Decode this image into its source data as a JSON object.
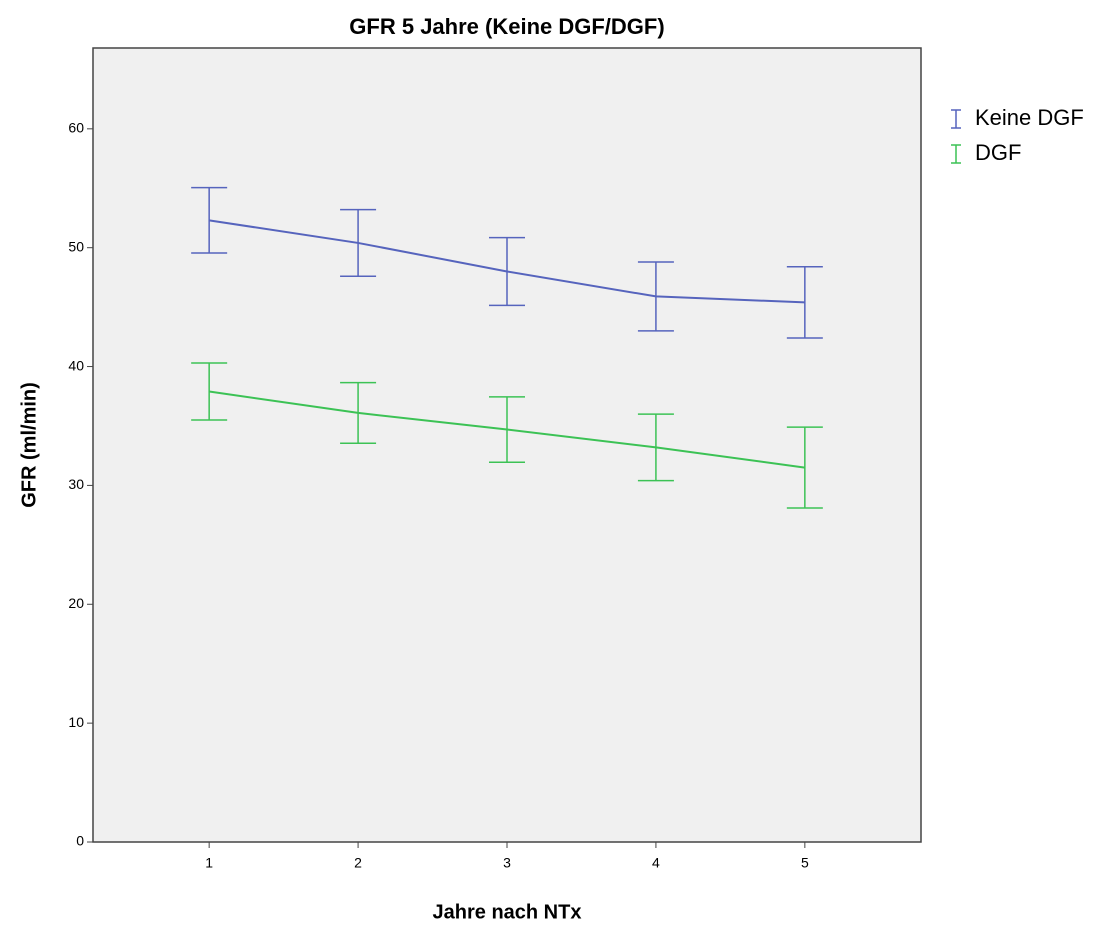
{
  "chart_data": {
    "type": "line",
    "title": "GFR 5 Jahre (Keine DGF/DGF)",
    "x_label": "Jahre nach NTx",
    "y_label": "GFR (ml/min)",
    "x": [
      1,
      2,
      3,
      4,
      5
    ],
    "xlim": [
      0.22,
      5.78
    ],
    "xticks": [
      1,
      2,
      3,
      4,
      5
    ],
    "ylim": [
      0,
      66.8
    ],
    "yticks": [
      0,
      10,
      20,
      30,
      40,
      50,
      60
    ],
    "legend": "right",
    "series": [
      {
        "name": "Keine DGF",
        "color": "#5664bd",
        "values": [
          52.3,
          50.4,
          48.0,
          45.9,
          45.4
        ],
        "errors": [
          2.75,
          2.8,
          2.85,
          2.9,
          3.0
        ]
      },
      {
        "name": "DGF",
        "color": "#3cc255",
        "values": [
          37.9,
          36.1,
          34.7,
          33.2,
          31.5
        ],
        "errors": [
          2.4,
          2.55,
          2.75,
          2.8,
          3.4
        ]
      }
    ]
  }
}
